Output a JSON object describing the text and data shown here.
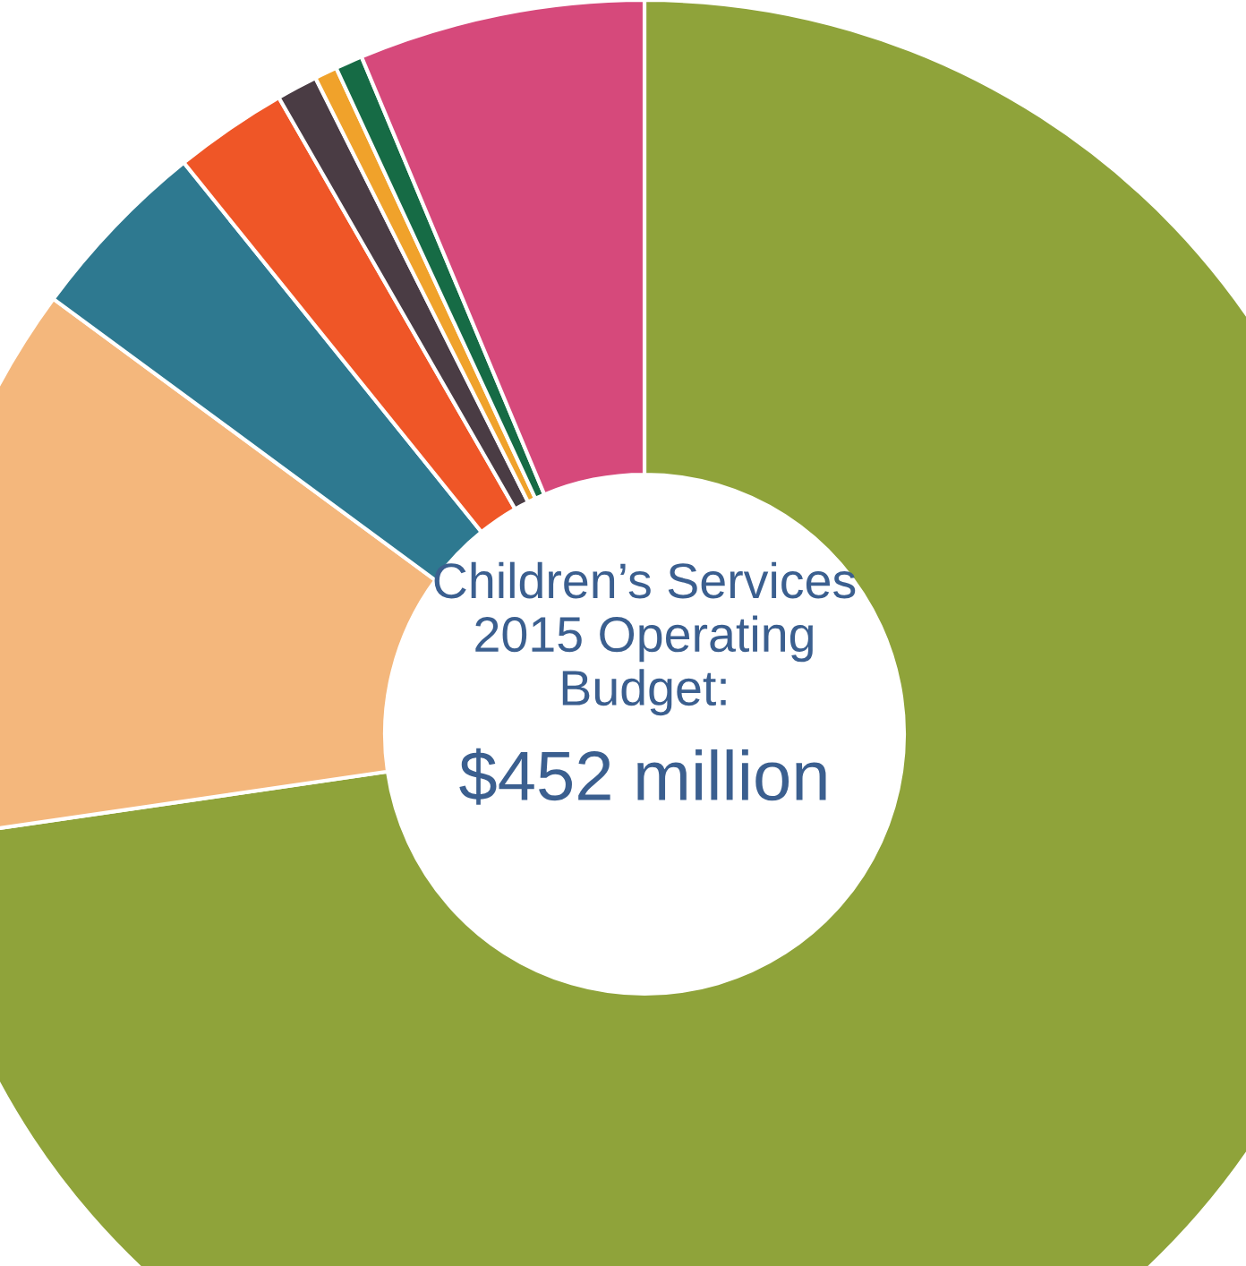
{
  "chart_data": {
    "type": "donut",
    "title": "Children’s Services\n2015 Operating\nBudget:",
    "subtitle": "$452 million",
    "categories": [
      null,
      null,
      null,
      null,
      null,
      null,
      null,
      null
    ],
    "values": [
      72.7,
      12.4,
      4.1,
      2.5,
      0.9,
      0.5,
      0.6,
      6.3
    ],
    "colors": [
      "#8fa33a",
      "#f4b77c",
      "#2e7990",
      "#ef5627",
      "#4a3c44",
      "#f0a22b",
      "#166b45",
      "#d6497b"
    ],
    "legend": false
  }
}
